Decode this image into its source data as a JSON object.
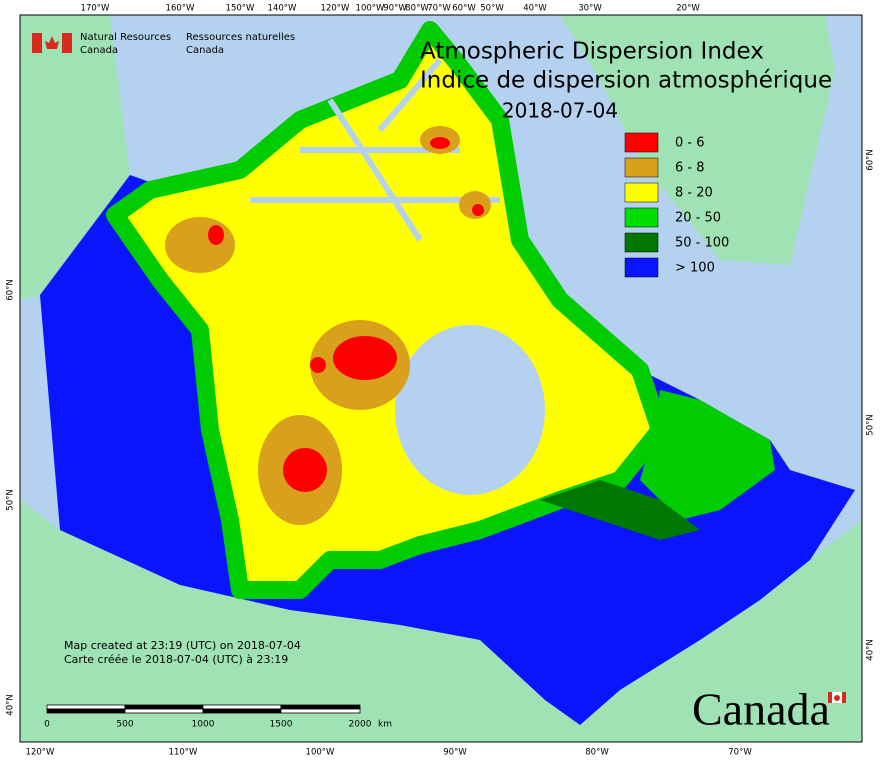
{
  "header": {
    "agency_en": [
      "Natural Resources",
      "Canada"
    ],
    "agency_fr": [
      "Ressources naturelles",
      "Canada"
    ],
    "title_en": "Atmospheric Dispersion Index",
    "title_fr": "Indice de dispersion atmosphérique",
    "date": "2018-07-04"
  },
  "legend": [
    {
      "label": "0 - 6",
      "color": "#ff0000"
    },
    {
      "label": "6 - 8",
      "color": "#d9a01c"
    },
    {
      "label": "8 - 20",
      "color": "#ffff00"
    },
    {
      "label": "20 - 50",
      "color": "#00dd00"
    },
    {
      "label": "50 - 100",
      "color": "#007800"
    },
    {
      "label": "> 100",
      "color": "#0a14ff"
    }
  ],
  "graticule": {
    "top": [
      "170°W",
      "160°W",
      "150°W",
      "140°W",
      "120°W",
      "100°W",
      "90°W",
      "80°W",
      "70°W",
      "60°W",
      "50°W",
      "40°W",
      "30°W",
      "20°W"
    ],
    "bottom": [
      "120°W",
      "110°W",
      "100°W",
      "90°W",
      "80°W",
      "70°W"
    ],
    "left": [
      "60°N",
      "50°N",
      "40°N"
    ],
    "right": [
      "60°N",
      "50°N",
      "40°N"
    ]
  },
  "credits": [
    "Map created at 23:19 (UTC) on 2018-07-04",
    "Carte créée le 2018-07-04 (UTC) à 23:19"
  ],
  "scale_bar": {
    "labels": [
      "0",
      "500",
      "1000",
      "1500",
      "2000"
    ],
    "unit": "km"
  },
  "wordmark": "Canada"
}
